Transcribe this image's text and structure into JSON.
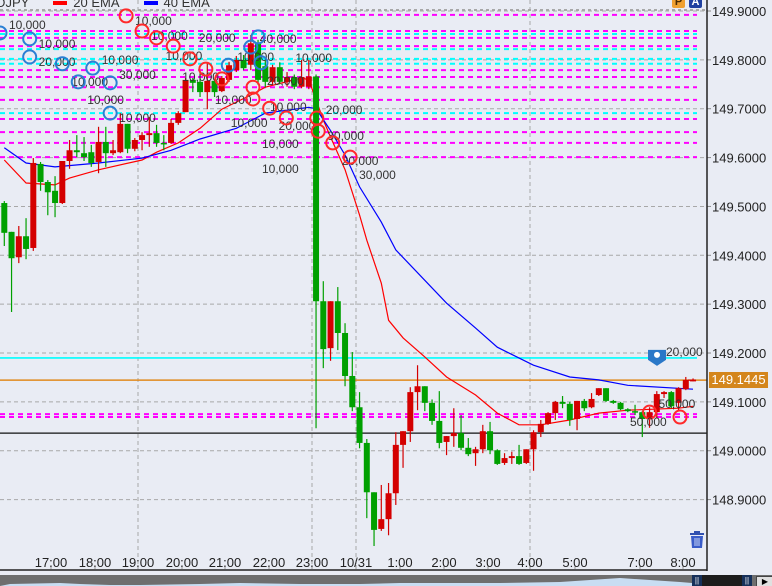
{
  "legend": {
    "symbol": "USDJPY",
    "ema20_label": "20 EMA",
    "ema40_label": "40 EMA",
    "ema20_color": "#ff0000",
    "ema40_color": "#0000ff"
  },
  "toolbar": {
    "p_button": "P",
    "a_button": "A",
    "trash_icon": "trash-icon"
  },
  "navigator": {
    "prev_handle": "||",
    "next_handle": "||",
    "scroll_button": "▶"
  },
  "chart_data": {
    "type": "candlestick",
    "symbol": "USDJPY",
    "up_color": "#d40000",
    "down_color": "#00a000",
    "ylim": [
      148.8,
      149.92
    ],
    "grid": true,
    "y_ticks": [
      "149.9000",
      "149.8000",
      "149.7000",
      "149.6000",
      "149.5000",
      "149.4000",
      "149.3000",
      "149.2000",
      "149.1000",
      "149.0000",
      "148.9000"
    ],
    "x_ticks": [
      {
        "text": "17:00",
        "grid": false
      },
      {
        "text": "18:00",
        "grid": false
      },
      {
        "text": "19:00",
        "grid": true
      },
      {
        "text": "20:00",
        "grid": false
      },
      {
        "text": "21:00",
        "grid": false
      },
      {
        "text": "22:00",
        "grid": false
      },
      {
        "text": "23:00",
        "grid": true
      },
      {
        "text": "10/31",
        "grid": true
      },
      {
        "text": "1:00",
        "grid": false
      },
      {
        "text": "2:00",
        "grid": false
      },
      {
        "text": "3:00",
        "grid": false
      },
      {
        "text": "4:00",
        "grid": true
      },
      {
        "text": "5:00",
        "grid": false
      },
      {
        "text": "7:00",
        "grid": false
      },
      {
        "text": "8:00",
        "grid": false
      }
    ],
    "current_price": "149.1445",
    "candles_ohlc": [
      [
        149.507,
        149.511,
        149.419,
        149.446
      ],
      [
        149.448,
        149.448,
        149.284,
        149.394
      ],
      [
        149.396,
        149.46,
        149.384,
        149.439
      ],
      [
        149.439,
        149.476,
        149.392,
        149.413
      ],
      [
        149.415,
        149.599,
        149.409,
        149.589
      ],
      [
        149.587,
        149.591,
        149.532,
        149.55
      ],
      [
        149.55,
        149.554,
        149.482,
        149.529
      ],
      [
        149.532,
        149.562,
        149.478,
        149.507
      ],
      [
        149.507,
        149.593,
        149.505,
        149.593
      ],
      [
        149.593,
        149.636,
        149.577,
        149.615
      ],
      [
        149.615,
        149.646,
        149.601,
        149.611
      ],
      [
        149.609,
        149.642,
        149.593,
        149.601
      ],
      [
        149.611,
        149.626,
        149.581,
        149.589
      ],
      [
        149.591,
        149.663,
        149.568,
        149.632
      ],
      [
        149.632,
        149.663,
        149.581,
        149.609
      ],
      [
        149.609,
        149.636,
        149.605,
        149.615
      ],
      [
        149.611,
        149.691,
        149.609,
        149.669
      ],
      [
        149.669,
        149.669,
        149.609,
        149.618
      ],
      [
        149.618,
        149.64,
        149.613,
        149.636
      ],
      [
        149.636,
        149.652,
        149.615,
        149.646
      ],
      [
        149.646,
        149.683,
        149.622,
        149.65
      ],
      [
        149.65,
        149.667,
        149.622,
        149.63
      ],
      [
        149.63,
        149.646,
        149.615,
        149.628
      ],
      [
        149.63,
        149.679,
        149.628,
        149.671
      ],
      [
        149.671,
        149.695,
        149.667,
        149.691
      ],
      [
        149.693,
        149.763,
        149.693,
        149.759
      ],
      [
        149.759,
        149.763,
        149.734,
        149.753
      ],
      [
        149.755,
        149.773,
        149.724,
        149.734
      ],
      [
        149.734,
        149.794,
        149.699,
        149.757
      ],
      [
        149.757,
        149.761,
        149.724,
        149.734
      ],
      [
        149.736,
        149.767,
        149.734,
        149.763
      ],
      [
        149.759,
        149.796,
        149.755,
        149.789
      ],
      [
        149.779,
        149.808,
        149.775,
        149.8
      ],
      [
        149.8,
        149.81,
        149.779,
        149.783
      ],
      [
        149.79,
        149.851,
        149.779,
        149.834
      ],
      [
        149.834,
        149.841,
        149.749,
        149.759
      ],
      [
        149.787,
        149.8,
        149.744,
        149.755
      ],
      [
        149.755,
        149.79,
        149.75,
        149.785
      ],
      [
        149.785,
        149.795,
        149.75,
        149.755
      ],
      [
        149.755,
        149.775,
        149.745,
        149.765
      ],
      [
        149.765,
        149.77,
        149.74,
        149.745
      ],
      [
        149.745,
        149.8,
        149.742,
        149.765
      ],
      [
        149.745,
        149.8,
        149.74,
        149.766
      ],
      [
        149.766,
        149.77,
        149.046,
        149.306
      ],
      [
        149.306,
        149.347,
        149.169,
        149.208
      ],
      [
        149.21,
        149.306,
        149.184,
        149.306
      ],
      [
        149.306,
        149.335,
        149.206,
        149.241
      ],
      [
        149.241,
        149.261,
        149.132,
        149.153
      ],
      [
        149.153,
        149.202,
        149.081,
        149.089
      ],
      [
        149.089,
        149.12,
        149.005,
        149.016
      ],
      [
        149.016,
        149.024,
        148.862,
        148.915
      ],
      [
        148.915,
        148.915,
        148.805,
        148.838
      ],
      [
        148.84,
        148.93,
        148.836,
        148.86
      ],
      [
        148.86,
        148.934,
        148.827,
        148.913
      ],
      [
        148.913,
        149.038,
        148.889,
        149.012
      ],
      [
        149.012,
        149.04,
        148.965,
        149.04
      ],
      [
        149.04,
        149.13,
        149.018,
        149.12
      ],
      [
        149.12,
        149.175,
        149.083,
        149.132
      ],
      [
        149.132,
        149.132,
        149.081,
        149.098
      ],
      [
        149.098,
        149.105,
        149.053,
        149.061
      ],
      [
        149.061,
        149.122,
        149.005,
        149.016
      ],
      [
        149.018,
        149.03,
        148.991,
        149.03
      ],
      [
        149.03,
        149.087,
        149.008,
        149.036
      ],
      [
        149.036,
        149.073,
        149.001,
        149.006
      ],
      [
        149.006,
        149.026,
        148.989,
        148.993
      ],
      [
        148.995,
        149.008,
        148.969,
        149.003
      ],
      [
        149.003,
        149.053,
        148.995,
        149.04
      ],
      [
        149.04,
        149.059,
        148.993,
        149.001
      ],
      [
        149.001,
        149.003,
        148.971,
        148.973
      ],
      [
        148.975,
        148.995,
        148.971,
        148.985
      ],
      [
        148.985,
        148.998,
        148.973,
        148.989
      ],
      [
        148.989,
        149.012,
        148.971,
        148.973
      ],
      [
        148.975,
        149.003,
        148.973,
        149.003
      ],
      [
        149.003,
        149.042,
        148.959,
        149.038
      ],
      [
        149.038,
        149.063,
        149.028,
        149.055
      ],
      [
        149.055,
        149.079,
        149.053,
        149.077
      ],
      [
        149.077,
        149.102,
        149.063,
        149.1
      ],
      [
        149.1,
        149.112,
        149.087,
        149.096
      ],
      [
        149.096,
        149.1,
        149.051,
        149.063
      ],
      [
        149.065,
        149.102,
        149.042,
        149.102
      ],
      [
        149.102,
        149.106,
        149.081,
        149.087
      ],
      [
        149.089,
        149.118,
        149.087,
        149.106
      ],
      [
        149.114,
        149.128,
        149.112,
        149.128
      ],
      [
        149.128,
        149.128,
        149.1,
        149.102
      ],
      [
        149.102,
        149.104,
        149.096,
        149.098
      ],
      [
        149.098,
        149.1,
        149.083,
        149.085
      ],
      [
        149.085,
        149.087,
        149.079,
        149.081
      ],
      [
        149.081,
        149.094,
        149.073,
        149.079
      ],
      [
        149.079,
        149.081,
        149.028,
        149.065
      ],
      [
        149.067,
        149.089,
        149.047,
        149.079
      ],
      [
        149.079,
        149.122,
        149.067,
        149.116
      ],
      [
        149.116,
        149.122,
        149.108,
        149.12
      ],
      [
        149.12,
        149.122,
        149.087,
        149.091
      ],
      [
        149.098,
        149.13,
        149.083,
        149.128
      ],
      [
        149.126,
        149.151,
        149.124,
        149.145
      ],
      [
        149.145,
        149.148,
        149.142,
        149.145
      ]
    ],
    "series": [
      {
        "name": "20 EMA",
        "color": "#ff0000",
        "points": [
          [
            0,
            149.595
          ],
          [
            3,
            149.548
          ],
          [
            7,
            149.544
          ],
          [
            9,
            149.558
          ],
          [
            13,
            149.575
          ],
          [
            19,
            149.595
          ],
          [
            21,
            149.611
          ],
          [
            24,
            149.63
          ],
          [
            27,
            149.66
          ],
          [
            30,
            149.699
          ],
          [
            34,
            149.728
          ],
          [
            36,
            149.744
          ],
          [
            41,
            149.763
          ],
          [
            42,
            149.759
          ],
          [
            43,
            149.718
          ],
          [
            44,
            149.677
          ],
          [
            45,
            149.642
          ],
          [
            47,
            149.575
          ],
          [
            49,
            149.482
          ],
          [
            50,
            149.431
          ],
          [
            52,
            149.343
          ],
          [
            53,
            149.267
          ],
          [
            55,
            149.231
          ],
          [
            58,
            149.192
          ],
          [
            61,
            149.151
          ],
          [
            65,
            149.114
          ],
          [
            68,
            149.077
          ],
          [
            71,
            149.053
          ],
          [
            74,
            149.053
          ],
          [
            78,
            149.063
          ],
          [
            82,
            149.077
          ],
          [
            86,
            149.083
          ],
          [
            93,
            149.087
          ],
          [
            95,
            149.091
          ]
        ]
      },
      {
        "name": "40 EMA",
        "color": "#0000ff",
        "points": [
          [
            0,
            149.62
          ],
          [
            3,
            149.589
          ],
          [
            7,
            149.581
          ],
          [
            13,
            149.589
          ],
          [
            19,
            149.599
          ],
          [
            23,
            149.615
          ],
          [
            27,
            149.638
          ],
          [
            32,
            149.66
          ],
          [
            36,
            149.691
          ],
          [
            42,
            149.703
          ],
          [
            43,
            149.7
          ],
          [
            45,
            149.655
          ],
          [
            47,
            149.605
          ],
          [
            49,
            149.54
          ],
          [
            52,
            149.468
          ],
          [
            54,
            149.411
          ],
          [
            61,
            149.302
          ],
          [
            65,
            149.251
          ],
          [
            68,
            149.212
          ],
          [
            73,
            149.175
          ],
          [
            78,
            149.151
          ],
          [
            82,
            149.145
          ],
          [
            86,
            149.134
          ],
          [
            95,
            149.126
          ]
        ]
      }
    ],
    "order_lines": [
      {
        "price": 149.892,
        "color": "#ff00ff",
        "style": "dashed"
      },
      {
        "price": 149.859,
        "color": "#ff00ff",
        "style": "dashed"
      },
      {
        "price": 149.853,
        "color": "#00ffff",
        "style": "dashed"
      },
      {
        "price": 149.845,
        "color": "#ff00ff",
        "style": "dashed"
      },
      {
        "price": 149.828,
        "color": "#ff00ff",
        "style": "dashed"
      },
      {
        "price": 149.822,
        "color": "#00ffff",
        "style": "dashed"
      },
      {
        "price": 149.802,
        "color": "#00ffff",
        "style": "dashed"
      },
      {
        "price": 149.792,
        "color": "#00ffff",
        "style": "dashed"
      },
      {
        "price": 149.779,
        "color": "#ff00ff",
        "style": "dashed"
      },
      {
        "price": 149.765,
        "color": "#ff00ff",
        "style": "dashed"
      },
      {
        "price": 149.744,
        "color": "#ff00ff",
        "style": "dashed"
      },
      {
        "price": 149.718,
        "color": "#ff00ff",
        "style": "dashed"
      },
      {
        "price": 149.691,
        "color": "#00ffff",
        "style": "dashed"
      },
      {
        "price": 149.679,
        "color": "#ff00ff",
        "style": "dashed"
      },
      {
        "price": 149.652,
        "color": "#ff00ff",
        "style": "dashed"
      },
      {
        "price": 149.63,
        "color": "#ff00ff",
        "style": "dashed"
      },
      {
        "price": 149.601,
        "color": "#ff00ff",
        "style": "dashed"
      },
      {
        "price": 149.075,
        "color": "#ff00ff",
        "style": "dashed"
      },
      {
        "price": 149.069,
        "color": "#ff00ff",
        "style": "dashed"
      },
      {
        "price": 149.19,
        "color": "#00ffff",
        "style": "solid",
        "label": "20,000"
      },
      {
        "price": 149.1445,
        "color": "#e08a1e",
        "style": "solid"
      },
      {
        "price": 149.036,
        "color": "#111111",
        "style": "solid"
      }
    ],
    "trade_markers": [
      {
        "candle": -0.6,
        "price": 149.855,
        "side": "blue",
        "qty": "10,000"
      },
      {
        "candle": 3.5,
        "price": 149.843,
        "side": "blue",
        "qty": "10,000"
      },
      {
        "candle": 3.5,
        "price": 149.806,
        "side": "blue",
        "qty": "20,000"
      },
      {
        "candle": 8,
        "price": 149.792,
        "side": "blue",
        "qty": "10,000"
      },
      {
        "candle": 12.2,
        "price": 149.783,
        "side": "blue",
        "qty": "10,000"
      },
      {
        "candle": 10.2,
        "price": 149.755,
        "side": "blue",
        "qty": "10,000"
      },
      {
        "candle": 14.6,
        "price": 149.753,
        "side": "blue",
        "qty": "30,000"
      },
      {
        "candle": 14.6,
        "price": 149.691,
        "side": "blue",
        "qty": "10,000"
      },
      {
        "candle": 30.9,
        "price": 149.789,
        "side": "blue",
        "qty": "10,000"
      },
      {
        "candle": 34,
        "price": 149.826,
        "side": "blue",
        "qty": "40,000"
      },
      {
        "candle": 35,
        "price": 149.847,
        "side": "blue",
        "qty": "20,000"
      },
      {
        "candle": 35.4,
        "price": 149.794,
        "side": "blue",
        "qty": "10,000"
      },
      {
        "candle": 16.8,
        "price": 149.89,
        "side": "red",
        "qty": "10,000"
      },
      {
        "candle": 19,
        "price": 149.859,
        "side": "red",
        "qty": "10,000"
      },
      {
        "candle": 21,
        "price": 149.845,
        "side": "red",
        "qty": "10,000"
      },
      {
        "candle": 23.3,
        "price": 149.828,
        "side": "red",
        "qty": "10,000"
      },
      {
        "candle": 25.6,
        "price": 149.802,
        "side": "red",
        "qty": "20,000"
      },
      {
        "candle": 27.8,
        "price": 149.781,
        "side": "red",
        "qty": "10,000"
      },
      {
        "candle": 30,
        "price": 149.761,
        "side": "red",
        "qty": "10,000"
      },
      {
        "candle": 34.3,
        "price": 149.744,
        "side": "red",
        "qty": "10,000"
      },
      {
        "candle": 34.3,
        "price": 149.72,
        "side": "red",
        "qty": "10,000"
      },
      {
        "candle": 36.6,
        "price": 149.701,
        "side": "red",
        "qty": "20,000"
      },
      {
        "candle": 38.9,
        "price": 149.681,
        "side": "red",
        "qty": "10,000"
      },
      {
        "candle": 43.1,
        "price": 149.681,
        "side": "red",
        "qty": "20,000"
      },
      {
        "candle": 43.3,
        "price": 149.654,
        "side": "red",
        "qty": "30,000"
      },
      {
        "candle": 45.3,
        "price": 149.63,
        "side": "red",
        "qty": "20,000"
      },
      {
        "candle": 47.7,
        "price": 149.601,
        "side": "red",
        "qty": "30,000"
      },
      {
        "candle": 89,
        "price": 149.079,
        "side": "red",
        "qty": "50,000"
      },
      {
        "candle": 93.2,
        "price": 149.069,
        "side": "red",
        "qty": "50,000"
      }
    ]
  }
}
